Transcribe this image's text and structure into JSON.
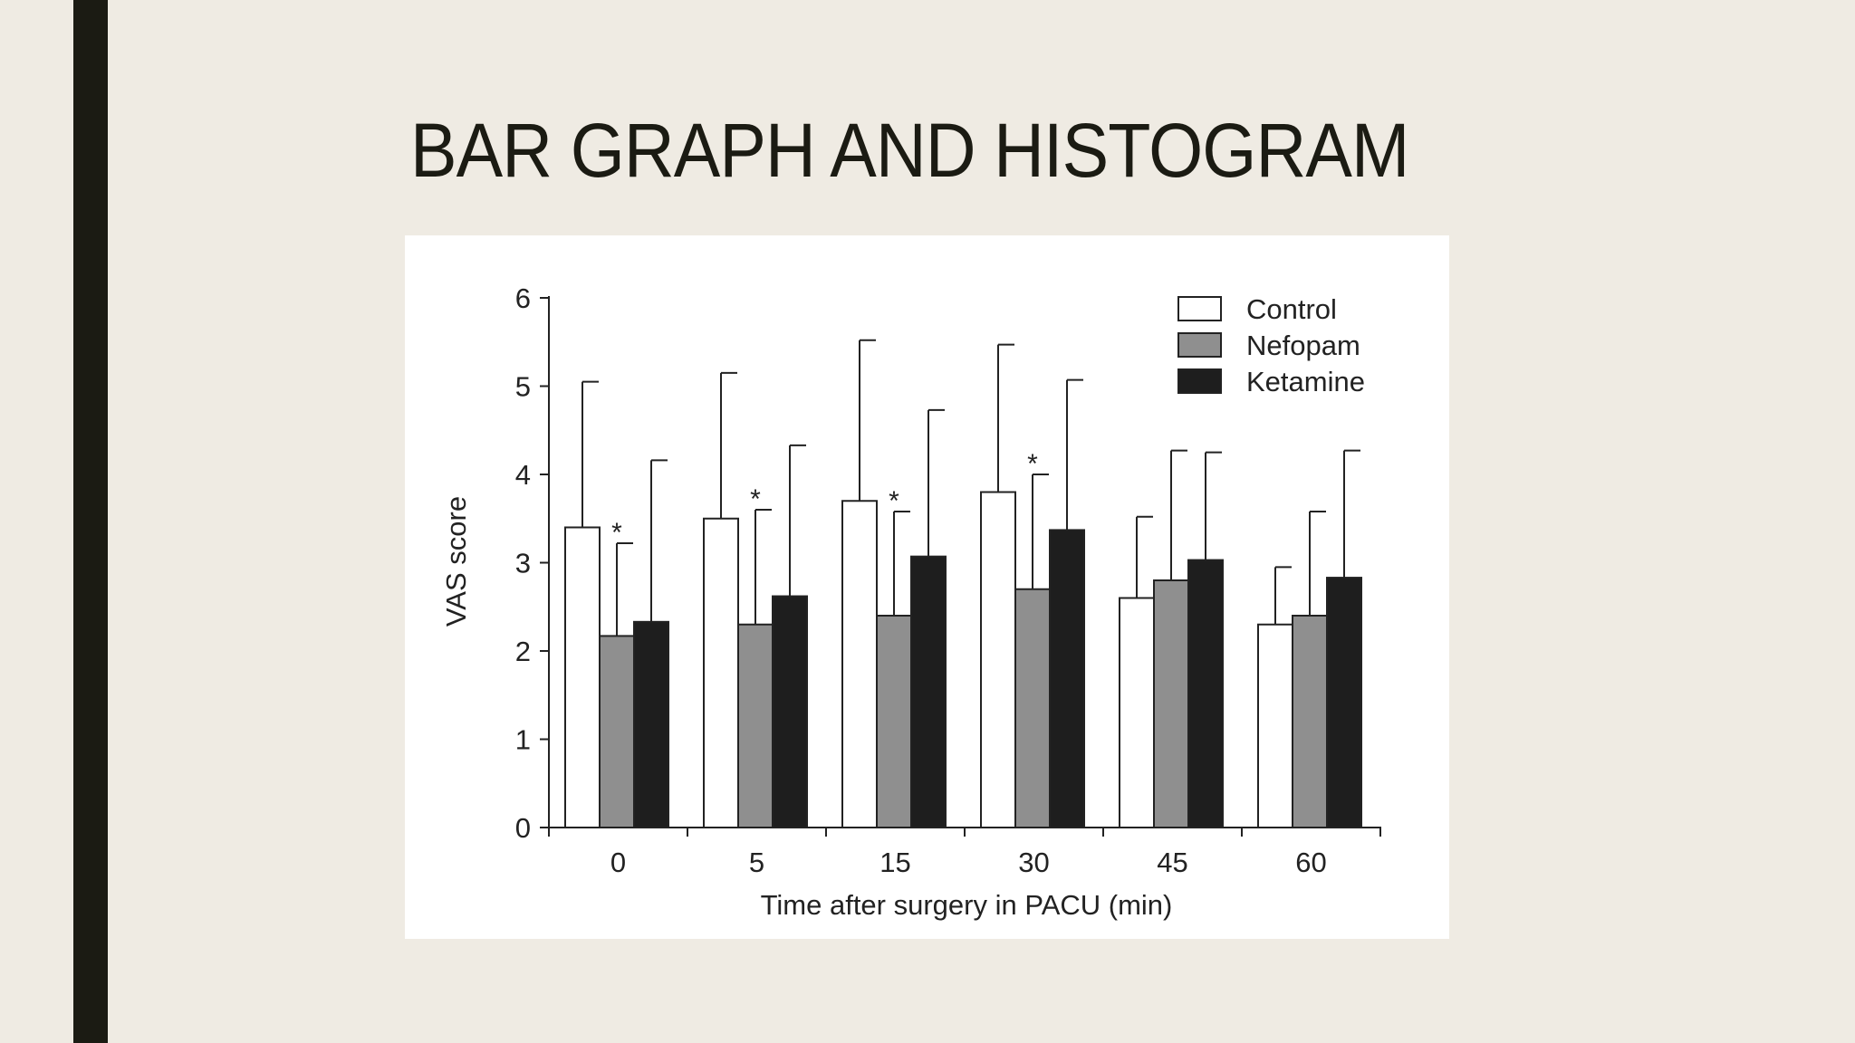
{
  "slide": {
    "title": "BAR GRAPH AND HISTOGRAM"
  },
  "colors": {
    "background": "#efebe3",
    "accent_bar": "#1b1b13",
    "control": "#ffffff",
    "nefopam": "#8f8f8f",
    "ketamine": "#1e1e1e"
  },
  "chart_data": {
    "type": "bar",
    "title": "",
    "xlabel": "Time after surgery in PACU (min)",
    "ylabel": "VAS score",
    "ylim": [
      0,
      6
    ],
    "yticks": [
      "0",
      "1",
      "2",
      "3",
      "4",
      "5",
      "6"
    ],
    "categories": [
      "0",
      "5",
      "15",
      "30",
      "45",
      "60"
    ],
    "legend_position": "top-right",
    "grid": false,
    "series": [
      {
        "name": "Control",
        "color": "#ffffff",
        "values": [
          3.4,
          3.5,
          3.7,
          3.8,
          2.6,
          2.3
        ],
        "error_upper": [
          5.05,
          5.15,
          5.52,
          5.47,
          3.52,
          2.95
        ]
      },
      {
        "name": "Nefopam",
        "color": "#8f8f8f",
        "values": [
          2.17,
          2.3,
          2.4,
          2.7,
          2.8,
          2.4
        ],
        "error_upper": [
          3.22,
          3.6,
          3.58,
          4.0,
          4.27,
          3.58
        ]
      },
      {
        "name": "Ketamine",
        "color": "#1e1e1e",
        "values": [
          2.33,
          2.62,
          3.07,
          3.37,
          3.03,
          2.83
        ],
        "error_upper": [
          4.16,
          4.33,
          4.73,
          5.07,
          4.25,
          4.27
        ]
      }
    ],
    "annotations": [
      {
        "category": "0",
        "series": "Nefopam",
        "text": "*"
      },
      {
        "category": "5",
        "series": "Nefopam",
        "text": "*"
      },
      {
        "category": "15",
        "series": "Nefopam",
        "text": "*"
      },
      {
        "category": "30",
        "series": "Nefopam",
        "text": "*"
      }
    ]
  }
}
